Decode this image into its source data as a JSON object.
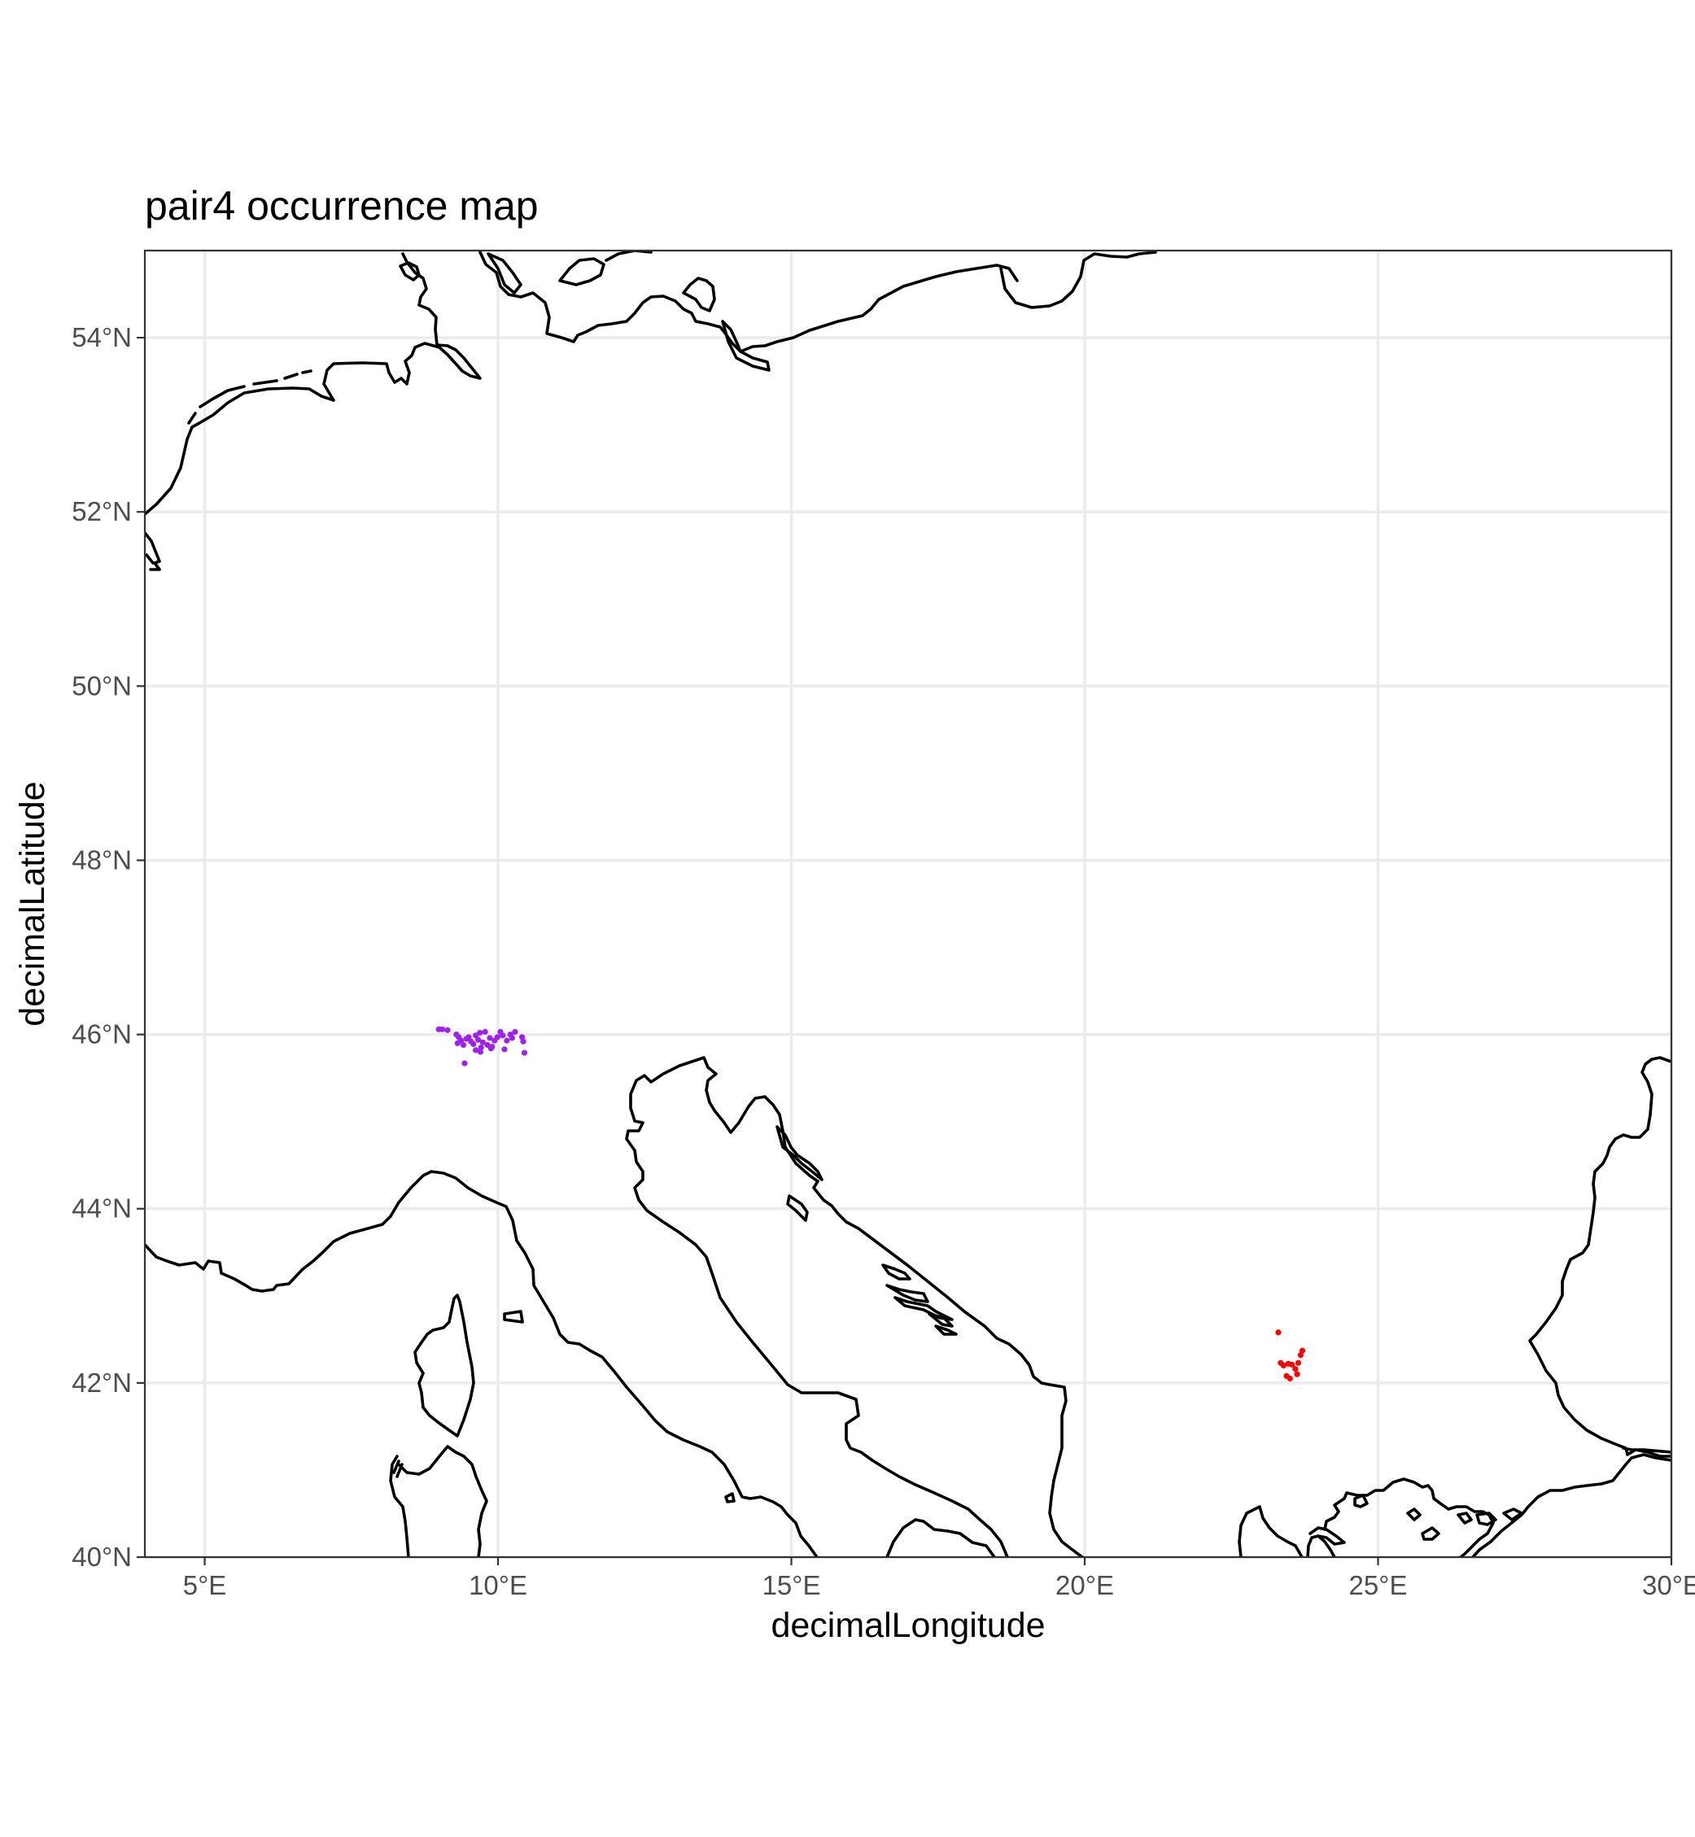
{
  "chart_data": {
    "type": "scatter",
    "title": "pair4 occurrence map",
    "xlabel": "decimalLongitude",
    "ylabel": "decimalLatitude",
    "xlim": [
      3.98,
      30.0
    ],
    "ylim": [
      40.0,
      55.0
    ],
    "x_ticks": [
      5,
      10,
      15,
      20,
      25,
      30
    ],
    "x_tick_labels": [
      "5°E",
      "10°E",
      "15°E",
      "20°E",
      "25°E",
      "30°E"
    ],
    "y_ticks": [
      40,
      42,
      44,
      46,
      48,
      50,
      52,
      54
    ],
    "y_tick_labels": [
      "40°N",
      "42°N",
      "44°N",
      "46°N",
      "48°N",
      "50°N",
      "52°N",
      "54°N"
    ],
    "grid": true,
    "legend": "none",
    "basemap": "coastlines",
    "series": [
      {
        "color": "#a020f0",
        "points": [
          [
            8.99,
            46.06
          ],
          [
            9.05,
            46.06
          ],
          [
            9.14,
            46.05
          ],
          [
            9.29,
            46.0
          ],
          [
            9.33,
            45.97
          ],
          [
            9.37,
            45.93
          ],
          [
            9.31,
            45.9
          ],
          [
            9.41,
            45.88
          ],
          [
            9.46,
            45.95
          ],
          [
            9.5,
            45.97
          ],
          [
            9.54,
            45.92
          ],
          [
            9.58,
            45.89
          ],
          [
            9.62,
            45.99
          ],
          [
            9.66,
            45.94
          ],
          [
            9.69,
            46.02
          ],
          [
            9.71,
            45.85
          ],
          [
            9.74,
            45.91
          ],
          [
            9.78,
            46.03
          ],
          [
            9.82,
            45.88
          ],
          [
            9.86,
            45.96
          ],
          [
            9.9,
            45.86
          ],
          [
            9.94,
            45.93
          ],
          [
            9.99,
            45.97
          ],
          [
            10.04,
            46.03
          ],
          [
            10.08,
            45.99
          ],
          [
            10.11,
            45.83
          ],
          [
            10.15,
            45.93
          ],
          [
            10.21,
            46.0
          ],
          [
            10.24,
            45.96
          ],
          [
            10.29,
            46.03
          ],
          [
            9.43,
            45.67
          ],
          [
            9.62,
            45.82
          ],
          [
            9.7,
            45.8
          ],
          [
            10.41,
            45.97
          ],
          [
            10.45,
            45.79
          ],
          [
            10.43,
            45.92
          ],
          [
            9.88,
            45.84
          ]
        ]
      },
      {
        "color": "#ff0000",
        "points": [
          [
            23.3,
            42.58
          ],
          [
            23.34,
            42.23
          ],
          [
            23.39,
            42.2
          ],
          [
            23.47,
            42.22
          ],
          [
            23.5,
            42.05
          ],
          [
            23.53,
            42.21
          ],
          [
            23.59,
            42.16
          ],
          [
            23.62,
            42.1
          ],
          [
            23.64,
            42.23
          ],
          [
            23.68,
            42.32
          ],
          [
            23.71,
            42.37
          ],
          [
            23.44,
            42.08
          ]
        ]
      }
    ]
  },
  "colors": {
    "coastline": "#000000",
    "grid": "#ebebeb",
    "tick_label": "#4d4d4d"
  }
}
